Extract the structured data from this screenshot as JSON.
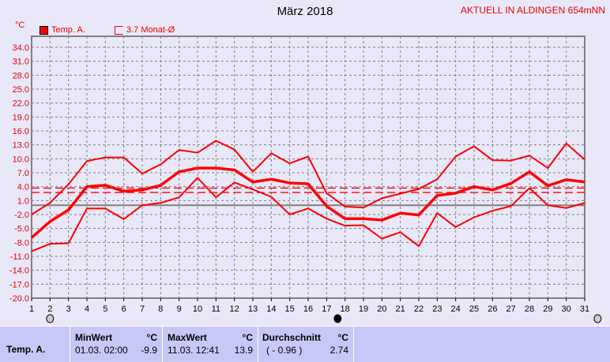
{
  "header": {
    "title": "März 2018",
    "station": "AKTUELL IN ALDINGEN 654mNN",
    "unit": "°C"
  },
  "legend": [
    {
      "label": "Temp. A.",
      "style": "filled-square"
    },
    {
      "label": "3.7 Monat-Ø",
      "style": "open-square"
    }
  ],
  "colors": {
    "series": "#ff0000",
    "grid": "#808080",
    "background": "#e8e8f8",
    "table": "#c8c8f8"
  },
  "chart_data": {
    "type": "line",
    "title": "März 2018",
    "ylabel": "°C",
    "ylim": [
      -20,
      34
    ],
    "xlim": [
      1,
      31
    ],
    "yticks": [
      "34.0",
      "31.0",
      "28.0",
      "25.0",
      "22.0",
      "19.0",
      "16.0",
      "13.0",
      "10.0",
      "7.0",
      "4.0",
      "1.0",
      "-2.0",
      "-5.0",
      "-8.0",
      "-11.0",
      "-14.0",
      "-17.0",
      "-20.0"
    ],
    "x": [
      1,
      2,
      3,
      4,
      5,
      6,
      7,
      8,
      9,
      10,
      11,
      12,
      13,
      14,
      15,
      16,
      17,
      18,
      19,
      20,
      21,
      22,
      23,
      24,
      25,
      26,
      27,
      28,
      29,
      30,
      31
    ],
    "grid": true,
    "series": [
      {
        "role": "daily-max",
        "values": [
          -2,
          0.5,
          4.5,
          9.5,
          10.3,
          10.3,
          6.8,
          8.8,
          11.9,
          11.3,
          13.9,
          12,
          7.2,
          11.2,
          9,
          10.5,
          2.6,
          -0.3,
          -0.5,
          1.5,
          2.5,
          3.5,
          5.6,
          10.5,
          12.7,
          9.7,
          9.6,
          10.7,
          8,
          13.3,
          9.8
        ]
      },
      {
        "role": "daily-mean",
        "values": [
          -7,
          -3.5,
          -1,
          4,
          4.3,
          3,
          3.3,
          4.3,
          7.2,
          8,
          8,
          7.6,
          5,
          5.6,
          4.8,
          4.6,
          -0.2,
          -2.9,
          -2.9,
          -3.2,
          -1.7,
          -2.1,
          2.1,
          2.6,
          4,
          3.3,
          4.7,
          7.2,
          4.2,
          5.5,
          5
        ]
      },
      {
        "role": "daily-min",
        "values": [
          -9.9,
          -8.3,
          -8.2,
          -0.7,
          -0.7,
          -3,
          0,
          0.5,
          1.7,
          5.9,
          1.7,
          4.9,
          3.4,
          1.8,
          -2,
          -0.7,
          -2.9,
          -4.4,
          -4.3,
          -7.2,
          -5.8,
          -8.8,
          -1.7,
          -4.7,
          -2.6,
          -1.2,
          -0.2,
          3.7,
          0,
          -0.6,
          0.5
        ]
      }
    ],
    "reference_lines": [
      {
        "label": "3.7 Monat-Ø",
        "value": 3.7
      },
      {
        "value": 2.74
      }
    ],
    "moon_markers": [
      {
        "day": 2,
        "phase": "full"
      },
      {
        "day": 17.6,
        "phase": "new"
      },
      {
        "day": 31.7,
        "phase": "full"
      }
    ]
  },
  "table": {
    "row_label": "Temp. A.",
    "min": {
      "header": "MinWert",
      "unit": "°C",
      "time": "01.03.  02:00",
      "value": "-9.9"
    },
    "max": {
      "header": "MaxWert",
      "unit": "°C",
      "time": "11.03.  12:41",
      "value": "13.9"
    },
    "avg": {
      "header": "Durchschnitt",
      "unit": "°C",
      "dev": "( - 0.96 )",
      "value": "2.74"
    }
  }
}
